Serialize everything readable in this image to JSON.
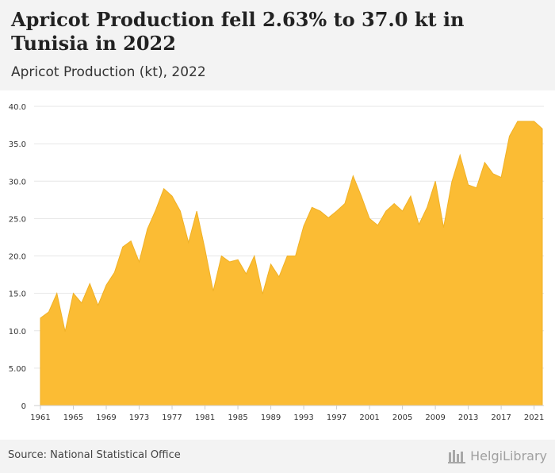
{
  "header": {
    "title": "Apricot Production fell 2.63% to 37.0 kt in Tunisia in 2022",
    "subtitle": "Apricot Production (kt), 2022"
  },
  "footer": {
    "source": "Source: National Statistical Office",
    "logo_text": "HelgiLibrary"
  },
  "colors": {
    "area_fill": "#fbbc34",
    "area_stroke": "#f0b126",
    "grid": "#e6e6e6",
    "axis_text": "#333333",
    "header_bg": "#f3f3f3"
  },
  "chart_data": {
    "type": "area",
    "title": "Apricot Production fell 2.63% to 37.0 kt in Tunisia in 2022",
    "subtitle": "Apricot Production (kt), 2022",
    "xlabel": "",
    "ylabel": "",
    "ylim": [
      0,
      40
    ],
    "xlim": [
      1961,
      2022
    ],
    "grid": true,
    "y_ticks": [
      "0",
      "5.00",
      "10.0",
      "15.0",
      "20.0",
      "25.0",
      "30.0",
      "35.0",
      "40.0"
    ],
    "x_ticks": [
      "1961",
      "1965",
      "1969",
      "1973",
      "1977",
      "1981",
      "1985",
      "1989",
      "1993",
      "1997",
      "2001",
      "2005",
      "2009",
      "2013",
      "2017",
      "2021"
    ],
    "x": [
      1961,
      1962,
      1963,
      1964,
      1965,
      1966,
      1967,
      1968,
      1969,
      1970,
      1971,
      1972,
      1973,
      1974,
      1975,
      1976,
      1977,
      1978,
      1979,
      1980,
      1981,
      1982,
      1983,
      1984,
      1985,
      1986,
      1987,
      1988,
      1989,
      1990,
      1991,
      1992,
      1993,
      1994,
      1995,
      1996,
      1997,
      1998,
      1999,
      2000,
      2001,
      2002,
      2003,
      2004,
      2005,
      2006,
      2007,
      2008,
      2009,
      2010,
      2011,
      2012,
      2013,
      2014,
      2015,
      2016,
      2017,
      2018,
      2019,
      2020,
      2021,
      2022
    ],
    "series": [
      {
        "values": [
          11.7,
          12.5,
          15.0,
          9.9,
          15.0,
          13.7,
          16.3,
          13.4,
          16.1,
          17.8,
          21.2,
          22.0,
          19.2,
          23.6,
          26.1,
          29.0,
          28.0,
          26.0,
          21.8,
          26.0,
          20.9,
          15.3,
          20.0,
          19.2,
          19.5,
          17.6,
          20.0,
          14.9,
          18.9,
          17.2,
          20.0,
          20.0,
          24.0,
          26.5,
          26.0,
          25.1,
          26.0,
          27.0,
          30.7,
          28.0,
          25.0,
          24.1,
          26.0,
          27.0,
          26.0,
          28.0,
          24.2,
          26.5,
          30.0,
          23.8,
          29.9,
          33.5,
          29.5,
          29.1,
          32.5,
          31.0,
          30.5,
          36.0,
          38.0,
          38.0,
          38.0,
          37.0
        ]
      }
    ]
  }
}
